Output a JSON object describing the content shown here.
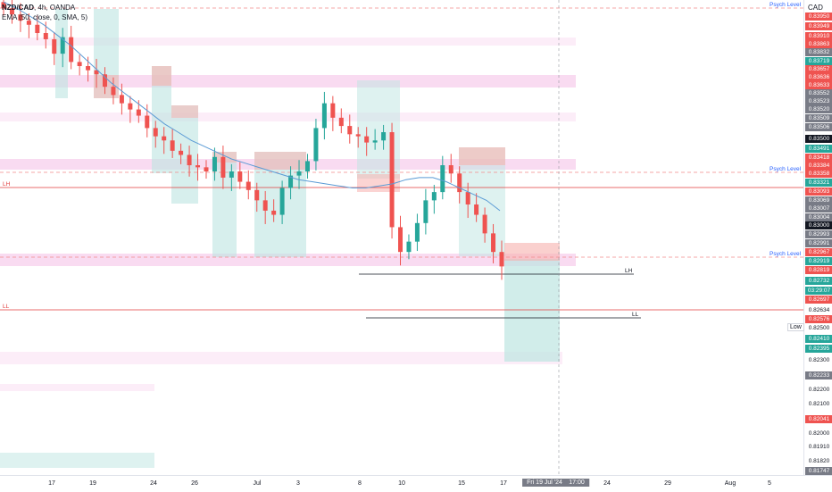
{
  "symbol": {
    "pair": "NZD/CAD",
    "interval": "4h",
    "broker": "OANDA",
    "indicator": "EMA (50, close, 0, SMA, 5)"
  },
  "axis": {
    "currency": "CAD"
  },
  "colors": {
    "up": "#26a69a",
    "down": "#ef5350",
    "ema": "#5b9bd5",
    "zone_pink": "#f8d7f0",
    "zone_red": "#f7b0ae",
    "zone_teal": "#bde5e1",
    "level_red": "#e03c3c",
    "psych": "#f28b8b"
  },
  "price_labels": [
    {
      "text": "0.83950",
      "color": "#ef5350"
    },
    {
      "text": "0.83949",
      "color": "#ef5350"
    },
    {
      "text": "0.83910",
      "color": "#ef5350"
    },
    {
      "text": "0.83863",
      "color": "#ef5350"
    },
    {
      "text": "0.83832",
      "color": "#787b86"
    },
    {
      "text": "0.83719",
      "color": "#26a69a"
    },
    {
      "text": "0.83657",
      "color": "#ef5350"
    },
    {
      "text": "0.83636",
      "color": "#ef5350"
    },
    {
      "text": "0.83633",
      "color": "#ef5350"
    },
    {
      "text": "0.83552",
      "color": "#787b86"
    },
    {
      "text": "0.83523",
      "color": "#787b86"
    },
    {
      "text": "0.83520",
      "color": "#787b86"
    },
    {
      "text": "0.83509",
      "color": "#787b86"
    },
    {
      "text": "0.83506",
      "color": "#787b86"
    },
    {
      "text": "0.83500",
      "color": "#131722"
    },
    {
      "text": "0.83491",
      "color": "#26a69a"
    },
    {
      "text": "0.83418",
      "color": "#ef5350"
    },
    {
      "text": "0.83384",
      "color": "#ef5350"
    },
    {
      "text": "0.83358",
      "color": "#ef5350"
    },
    {
      "text": "0.83321",
      "color": "#26a69a"
    },
    {
      "text": "0.83093",
      "color": "#ef5350"
    },
    {
      "text": "0.83069",
      "color": "#787b86"
    },
    {
      "text": "0.83007",
      "color": "#787b86"
    },
    {
      "text": "0.83004",
      "color": "#787b86"
    },
    {
      "text": "0.83000",
      "color": "#131722"
    },
    {
      "text": "0.82993",
      "color": "#787b86"
    },
    {
      "text": "0.82991",
      "color": "#787b86"
    },
    {
      "text": "0.82967",
      "color": "#ef5350"
    },
    {
      "text": "0.82919",
      "color": "#26a69a"
    },
    {
      "text": "0.82819",
      "color": "#ef5350"
    },
    {
      "text": "0.82732",
      "color": "#26a69a"
    },
    {
      "text": "03:29:07",
      "color": "#26a69a"
    },
    {
      "text": "0.82697",
      "color": "#ef5350"
    },
    {
      "text": "0.82634",
      "color": "plain"
    },
    {
      "text": "0.82576",
      "color": "#ef5350"
    },
    {
      "text": "0.82500",
      "color": "plain"
    },
    {
      "text": "0.82410",
      "color": "#26a69a"
    },
    {
      "text": "0.82395",
      "color": "#26a69a"
    },
    {
      "text": "0.82300",
      "color": "plain"
    },
    {
      "text": "0.82233",
      "color": "#787b86"
    },
    {
      "text": "0.82200",
      "color": "plain"
    },
    {
      "text": "0.82100",
      "color": "plain"
    },
    {
      "text": "0.82041",
      "color": "#ef5350"
    },
    {
      "text": "0.82000",
      "color": "plain"
    },
    {
      "text": "0.81910",
      "color": "plain"
    },
    {
      "text": "0.81820",
      "color": "plain"
    },
    {
      "text": "0.81747",
      "color": "#787b86"
    }
  ],
  "low_tag": "Low",
  "levels": {
    "psych": "Psych Level",
    "lh": "LH",
    "ll": "LL"
  },
  "time_labels": [
    "17",
    "19",
    "24",
    "26",
    "Jul",
    "3",
    "8",
    "10",
    "15",
    "17",
    "Fri 19 Jul '24",
    "17:00",
    "24",
    "29",
    "Aug",
    "5"
  ],
  "chart_data": {
    "type": "candlestick",
    "series": [
      {
        "name": "NZD/CAD",
        "values": [
          0.8398,
          0.8395,
          0.8392,
          0.839,
          0.8386,
          0.8383,
          0.8376,
          0.8384,
          0.8372,
          0.837,
          0.8368,
          0.8366,
          0.836,
          0.8356,
          0.8352,
          0.8349,
          0.8346,
          0.834,
          0.8336,
          0.8334,
          0.8329,
          0.8327,
          0.8322,
          0.8321,
          0.8319,
          0.8326,
          0.8316,
          0.8319,
          0.8314,
          0.831,
          0.8305,
          0.83,
          0.8298,
          0.8311,
          0.8317,
          0.8319,
          0.8324,
          0.834,
          0.8352,
          0.8345,
          0.8341,
          0.8337,
          0.8336,
          0.8333,
          0.8334,
          0.8338,
          0.8292,
          0.828,
          0.8285,
          0.8294,
          0.8305,
          0.8309,
          0.8322,
          0.8318,
          0.8309,
          0.8303,
          0.8298,
          0.8289,
          0.828,
          0.8273
        ]
      },
      {
        "name": "EMA",
        "values": [
          0.8401,
          0.8398,
          0.8394,
          0.839,
          0.8385,
          0.838,
          0.8374,
          0.8368,
          0.8362,
          0.8357,
          0.8352,
          0.8347,
          0.8342,
          0.8338,
          0.8334,
          0.8331,
          0.8328,
          0.8325,
          0.8323,
          0.8321,
          0.8319,
          0.8317,
          0.8315,
          0.8314,
          0.8313,
          0.8312,
          0.8311,
          0.8311,
          0.8312,
          0.8313,
          0.8315,
          0.8316,
          0.8316,
          0.8314,
          0.8311,
          0.8308,
          0.8305,
          0.83
        ]
      }
    ],
    "ylim": [
      0.8172,
      0.8402
    ]
  }
}
